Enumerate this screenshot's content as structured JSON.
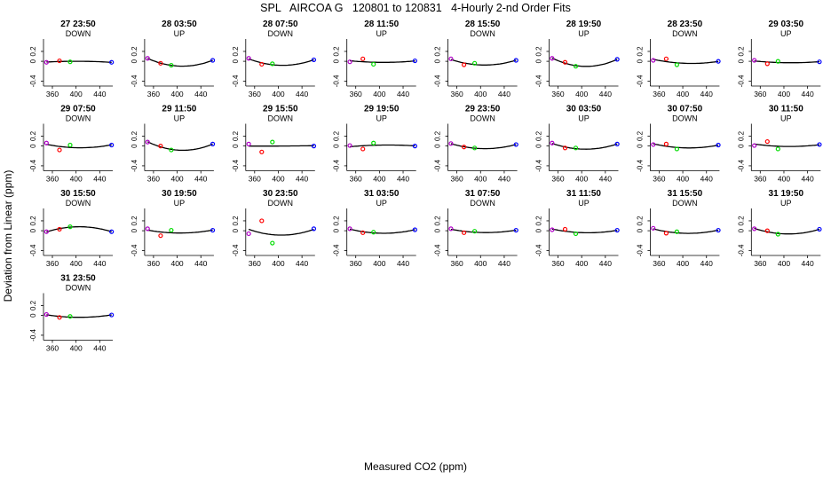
{
  "figure": {
    "title": "SPL   AIRCOA G   120801 to 120831   4-Hourly 2-nd Order Fits",
    "xlabel": "Measured CO2 (ppm)",
    "ylabel": "Deviation from Linear (ppm)",
    "point_colors": {
      "low": "#b000c8",
      "mid_low": "#ff0000",
      "mid_high": "#00dd00",
      "high": "#0000ff"
    },
    "curve_color": "#000000"
  },
  "chart_data": {
    "type": "scatter",
    "title": "SPL   AIRCOA G   120801 to 120831   4-Hourly 2-nd Order Fits",
    "xlabel": "Measured CO2 (ppm)",
    "ylabel": "Deviation from Linear (ppm)",
    "xlim": [
      345,
      462
    ],
    "ylim": [
      -0.5,
      0.45
    ],
    "x_ticks": [
      360,
      400,
      440
    ],
    "y_ticks": [
      -0.4,
      0,
      0.2
    ],
    "y_tick_labels": [
      "-0.4",
      "0",
      "0.2"
    ],
    "grid": false,
    "x_standards": [
      350,
      372,
      390,
      460
    ],
    "panels": [
      {
        "label": "27 23:50",
        "direction": "DOWN",
        "y": [
          -0.02,
          0.01,
          -0.01,
          -0.02
        ]
      },
      {
        "label": "28 03:50",
        "direction": "UP",
        "y": [
          0.06,
          -0.04,
          -0.08,
          0.02
        ]
      },
      {
        "label": "28 07:50",
        "direction": "DOWN",
        "y": [
          0.06,
          -0.06,
          -0.05,
          0.03
        ]
      },
      {
        "label": "28 11:50",
        "direction": "UP",
        "y": [
          -0.01,
          0.05,
          -0.06,
          0.01
        ]
      },
      {
        "label": "28 15:50",
        "direction": "DOWN",
        "y": [
          0.05,
          -0.07,
          -0.04,
          0.02
        ]
      },
      {
        "label": "28 19:50",
        "direction": "UP",
        "y": [
          0.06,
          -0.02,
          -0.1,
          0.04
        ]
      },
      {
        "label": "28 23:50",
        "direction": "DOWN",
        "y": [
          0.02,
          0.05,
          -0.07,
          0.0
        ]
      },
      {
        "label": "29 03:50",
        "direction": "UP",
        "y": [
          0.02,
          -0.05,
          0.0,
          -0.01
        ]
      },
      {
        "label": "29 07:50",
        "direction": "DOWN",
        "y": [
          0.06,
          -0.08,
          0.02,
          0.02
        ]
      },
      {
        "label": "29 11:50",
        "direction": "UP",
        "y": [
          0.08,
          0.0,
          -0.08,
          0.04
        ]
      },
      {
        "label": "29 15:50",
        "direction": "DOWN",
        "y": [
          0.04,
          -0.12,
          0.08,
          0.0
        ]
      },
      {
        "label": "29 19:50",
        "direction": "UP",
        "y": [
          0.01,
          -0.06,
          0.06,
          0.0
        ]
      },
      {
        "label": "29 23:50",
        "direction": "DOWN",
        "y": [
          0.05,
          -0.02,
          -0.04,
          0.03
        ]
      },
      {
        "label": "30 03:50",
        "direction": "UP",
        "y": [
          0.06,
          -0.04,
          -0.04,
          0.04
        ]
      },
      {
        "label": "30 07:50",
        "direction": "DOWN",
        "y": [
          0.03,
          0.04,
          -0.06,
          0.02
        ]
      },
      {
        "label": "30 11:50",
        "direction": "UP",
        "y": [
          0.01,
          0.09,
          -0.06,
          0.03
        ]
      },
      {
        "label": "30 15:50",
        "direction": "DOWN",
        "y": [
          -0.02,
          0.03,
          0.08,
          -0.02
        ]
      },
      {
        "label": "30 19:50",
        "direction": "UP",
        "y": [
          0.04,
          -0.1,
          0.01,
          0.01
        ]
      },
      {
        "label": "30 23:50",
        "direction": "DOWN",
        "y": [
          -0.06,
          0.2,
          -0.25,
          0.04
        ]
      },
      {
        "label": "31 03:50",
        "direction": "UP",
        "y": [
          0.04,
          -0.04,
          -0.03,
          0.02
        ]
      },
      {
        "label": "31 07:50",
        "direction": "DOWN",
        "y": [
          0.04,
          -0.04,
          -0.01,
          0.01
        ]
      },
      {
        "label": "31 11:50",
        "direction": "UP",
        "y": [
          0.02,
          0.03,
          -0.06,
          0.01
        ]
      },
      {
        "label": "31 15:50",
        "direction": "DOWN",
        "y": [
          0.05,
          -0.05,
          -0.02,
          0.01
        ]
      },
      {
        "label": "31 19:50",
        "direction": "UP",
        "y": [
          0.04,
          0.0,
          -0.07,
          0.03
        ]
      },
      {
        "label": "31 23:50",
        "direction": "DOWN",
        "y": [
          0.02,
          -0.04,
          -0.02,
          0.01
        ]
      }
    ]
  }
}
